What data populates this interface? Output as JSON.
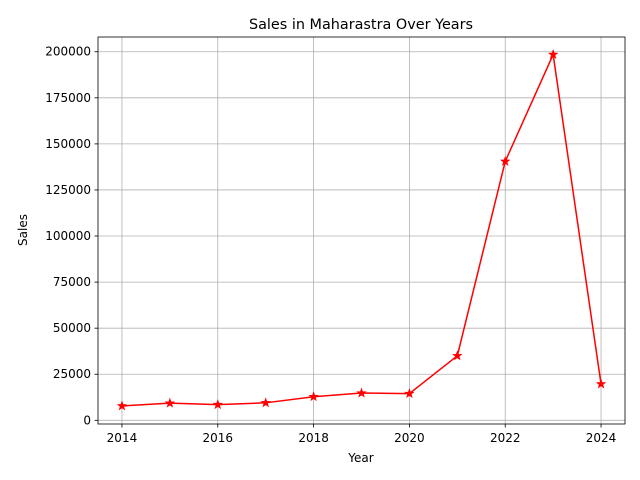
{
  "chart_data": {
    "type": "line",
    "title": "Sales in Maharastra Over Years",
    "xlabel": "Year",
    "ylabel": "Sales",
    "x": [
      2014,
      2015,
      2016,
      2017,
      2018,
      2019,
      2020,
      2021,
      2022,
      2023,
      2024
    ],
    "series": [
      {
        "values": [
          7800,
          9300,
          8500,
          9500,
          12800,
          14800,
          14500,
          35000,
          140500,
          198500,
          19700
        ],
        "color": "#ff0000",
        "marker": "star"
      }
    ],
    "xlim": [
      2013.5,
      2024.5
    ],
    "ylim": [
      -2000,
      208000
    ],
    "xticks": [
      2014,
      2016,
      2018,
      2020,
      2022,
      2024
    ],
    "yticks": [
      0,
      25000,
      50000,
      75000,
      100000,
      125000,
      150000,
      175000,
      200000
    ],
    "xtick_labels": [
      "2014",
      "2016",
      "2018",
      "2020",
      "2022",
      "2024"
    ],
    "ytick_labels": [
      "0",
      "25000",
      "50000",
      "75000",
      "100000",
      "125000",
      "150000",
      "175000",
      "200000"
    ],
    "grid": true,
    "grid_color": "#b0b0b0",
    "axis_color": "#000000"
  }
}
